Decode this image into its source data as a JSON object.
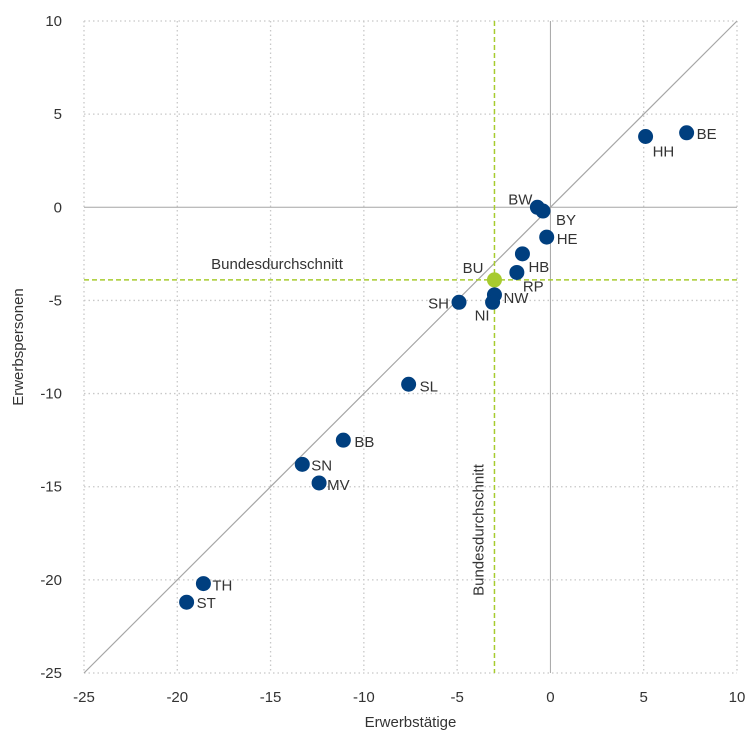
{
  "chart_data": {
    "type": "scatter",
    "xlabel": "Erwerbstätige",
    "ylabel": "Erwerbspersonen",
    "xlim": [
      -25,
      10
    ],
    "ylim": [
      -25,
      10
    ],
    "xticks": [
      -25,
      -20,
      -15,
      -10,
      -5,
      0,
      5,
      10
    ],
    "yticks": [
      -25,
      -20,
      -15,
      -10,
      -5,
      0,
      5,
      10
    ],
    "x_tick_labels": [
      "-25",
      "-20",
      "-15",
      "-10",
      "-5",
      "0",
      "5",
      "10"
    ],
    "y_tick_labels": [
      "-25",
      "-20",
      "-15",
      "-10",
      "-5",
      "0",
      "5",
      "10"
    ],
    "grid": true,
    "diagonal": "y = x",
    "reference_lines": {
      "x": -3.0,
      "y": -3.9,
      "vertical_label": "Bundesdurchschnitt",
      "horizontal_label": "Bundesdurchschnitt"
    },
    "points": [
      {
        "label": "BE",
        "x": 7.3,
        "y": 4.0
      },
      {
        "label": "HH",
        "x": 5.1,
        "y": 3.8
      },
      {
        "label": "BW",
        "x": -0.7,
        "y": 0.0
      },
      {
        "label": "BY",
        "x": -0.4,
        "y": -0.2
      },
      {
        "label": "HE",
        "x": -0.2,
        "y": -1.6
      },
      {
        "label": "HB",
        "x": -1.5,
        "y": -2.5
      },
      {
        "label": "RP",
        "x": -1.8,
        "y": -3.5
      },
      {
        "label": "BU",
        "x": -3.0,
        "y": -3.9
      },
      {
        "label": "NW",
        "x": -3.0,
        "y": -4.7
      },
      {
        "label": "NI",
        "x": -3.1,
        "y": -5.1
      },
      {
        "label": "SH",
        "x": -4.9,
        "y": -5.1
      },
      {
        "label": "SL",
        "x": -7.6,
        "y": -9.5
      },
      {
        "label": "BB",
        "x": -11.1,
        "y": -12.5
      },
      {
        "label": "SN",
        "x": -13.3,
        "y": -13.8
      },
      {
        "label": "MV",
        "x": -12.4,
        "y": -14.8
      },
      {
        "label": "TH",
        "x": -18.6,
        "y": -20.2
      },
      {
        "label": "ST",
        "x": -19.5,
        "y": -21.2
      }
    ]
  },
  "colors": {
    "point": "#003f7f",
    "highlight": "#a7cb2e",
    "reference_line": "#a7cb2e",
    "diagonal": "#a6a6a6",
    "zero_line": "#a6a6a6",
    "grid": "#c8c8c8"
  }
}
